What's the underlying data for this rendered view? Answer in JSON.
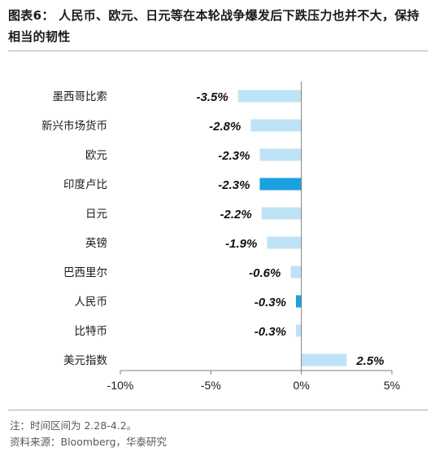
{
  "figure": {
    "title": "图表6： 人民币、欧元、日元等在本轮战争爆发后下跌压力也并不大，保持相当的韧性",
    "note": "注：时间区间为 2.28-4.2。",
    "source": "资料来源：Bloomberg，华泰研究"
  },
  "chart_data": {
    "type": "bar",
    "orientation": "horizontal",
    "categories": [
      "墨西哥比索",
      "新兴市场货币",
      "欧元",
      "印度卢比",
      "日元",
      "英镑",
      "巴西里尔",
      "人民币",
      "比特币",
      "美元指数"
    ],
    "values": [
      -3.5,
      -2.8,
      -2.3,
      -2.3,
      -2.2,
      -1.9,
      -0.6,
      -0.3,
      -0.3,
      2.5
    ],
    "data_labels": [
      "-3.5%",
      "-2.8%",
      "-2.3%",
      "-2.3%",
      "-2.2%",
      "-1.9%",
      "-0.6%",
      "-0.3%",
      "-0.3%",
      "2.5%"
    ],
    "highlight": [
      "印度卢比",
      "人民币"
    ],
    "colors": {
      "default": "#bfe3f6",
      "highlight": "#1aa1e1",
      "axis": "#7f7f7f"
    },
    "xlim": [
      -10,
      5
    ],
    "xticks": [
      -10,
      -5,
      0,
      5
    ],
    "xtick_labels": [
      "-10%",
      "-5%",
      "0%",
      "5%"
    ],
    "grid": false,
    "legend": "none"
  }
}
